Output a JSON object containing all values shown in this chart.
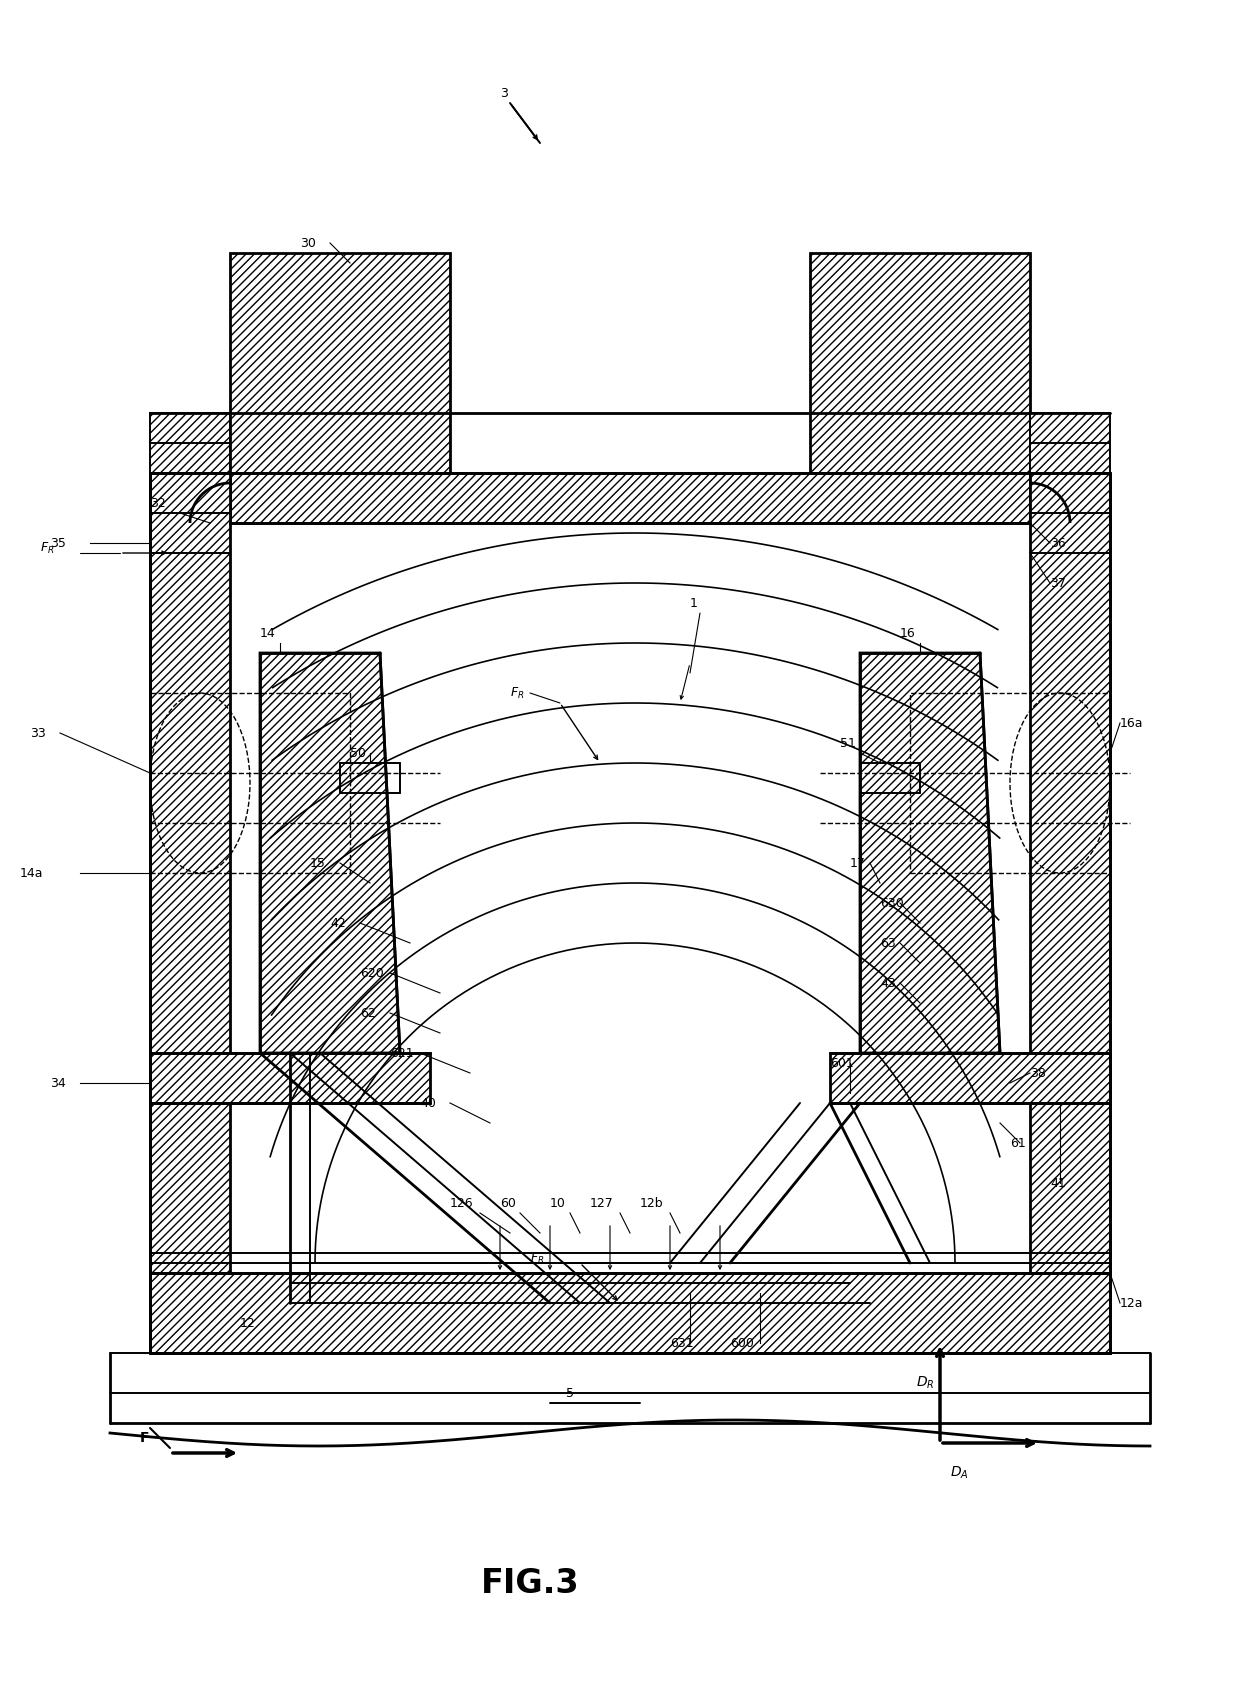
{
  "background": "#ffffff",
  "lc": "#000000",
  "fig_w": 12.4,
  "fig_h": 16.63,
  "dpi": 100
}
